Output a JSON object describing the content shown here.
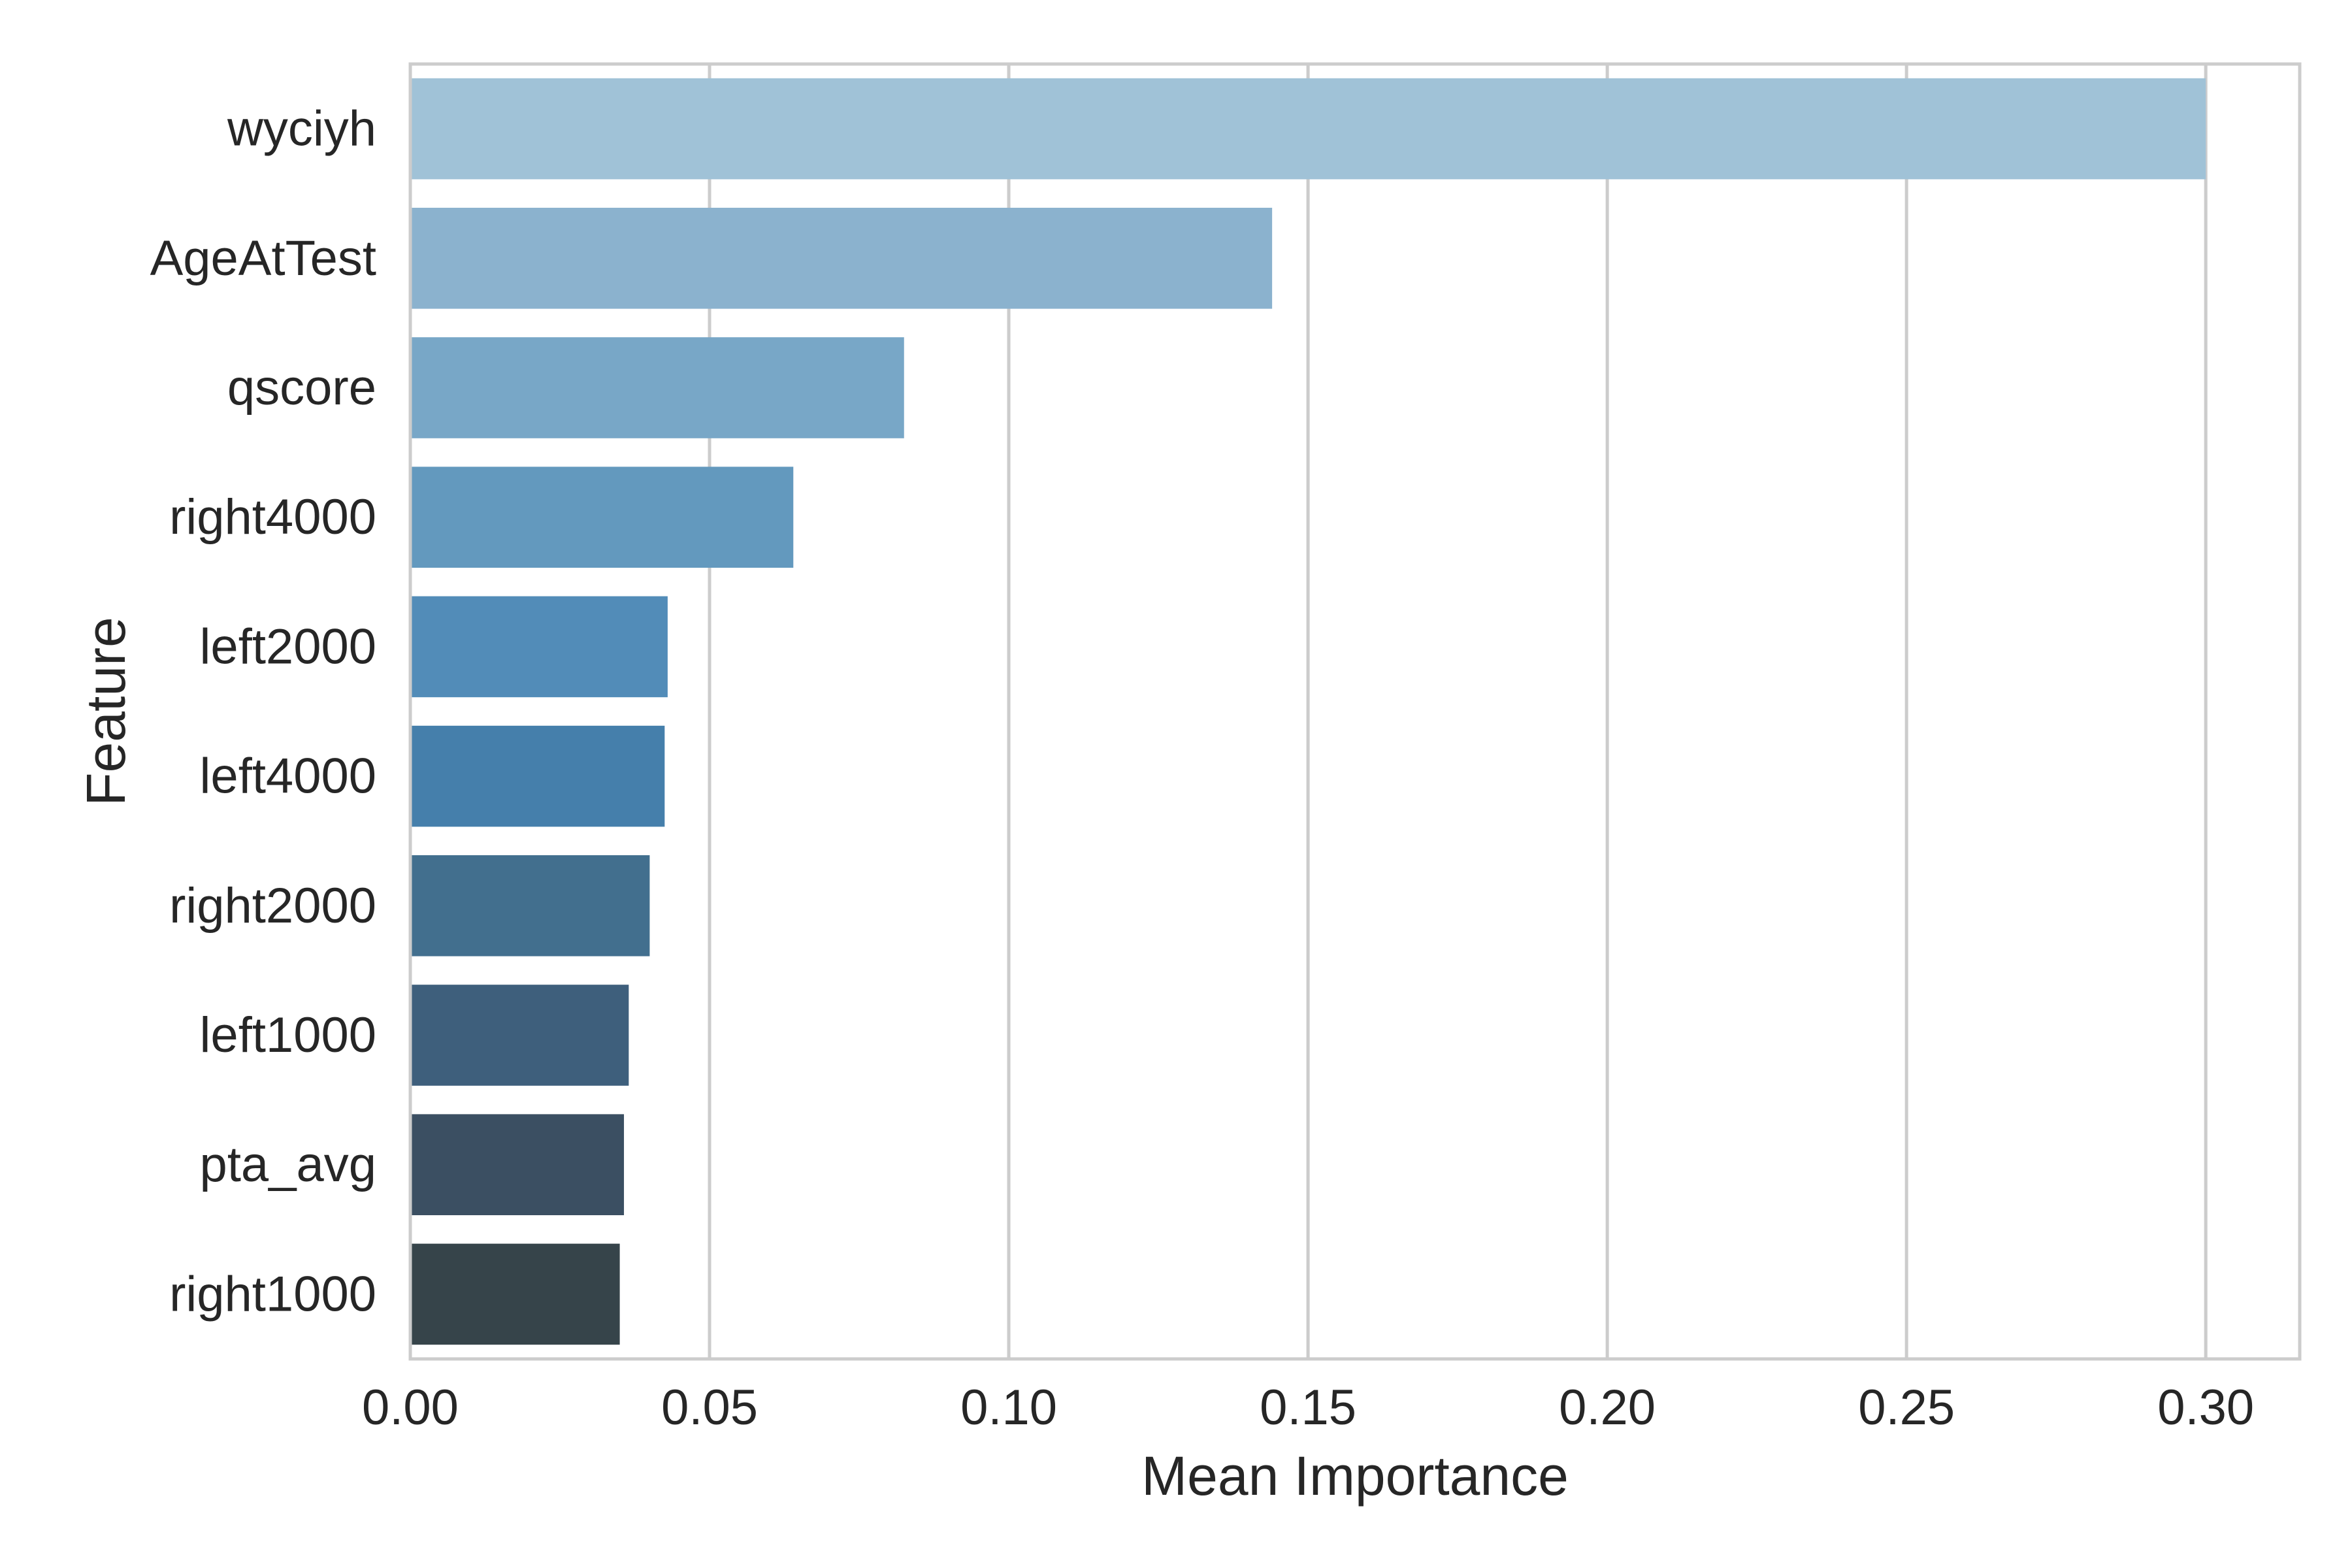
{
  "chart_data": {
    "type": "bar",
    "orientation": "horizontal",
    "categories": [
      "wyciyh",
      "AgeAtTest",
      "qscore",
      "right4000",
      "left2000",
      "left4000",
      "right2000",
      "left1000",
      "pta_avg",
      "right1000"
    ],
    "values": [
      0.3,
      0.144,
      0.0825,
      0.064,
      0.043,
      0.0425,
      0.04,
      0.0365,
      0.0357,
      0.035
    ],
    "colors": [
      "#a0c2d7",
      "#8bb2ce",
      "#78a7c7",
      "#6399be",
      "#528cb8",
      "#457fab",
      "#426f8e",
      "#3e5f7c",
      "#3b4f62",
      "#36444a"
    ],
    "title": "",
    "xlabel": "Mean Importance",
    "ylabel": "Feature",
    "xlim": [
      0,
      0.3157
    ],
    "xticks": [
      0.0,
      0.05,
      0.1,
      0.15,
      0.2,
      0.25,
      0.3
    ],
    "xtick_labels": [
      "0.00",
      "0.05",
      "0.10",
      "0.15",
      "0.20",
      "0.25",
      "0.30"
    ],
    "grid": "x-major",
    "legend": "none"
  }
}
